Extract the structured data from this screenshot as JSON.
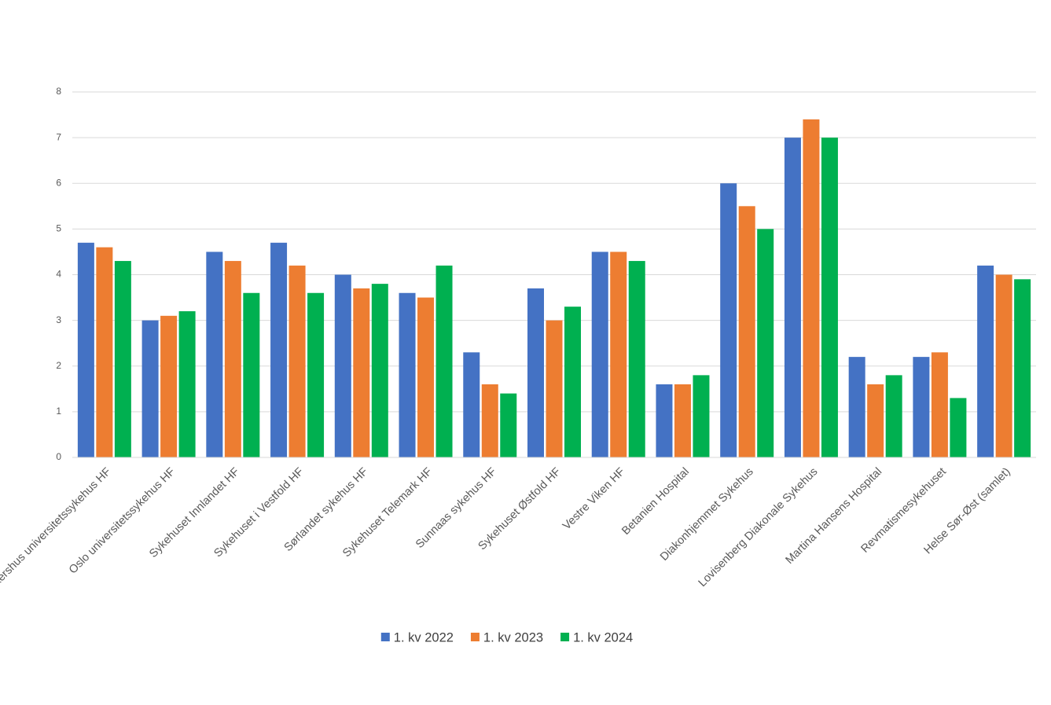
{
  "chart_data": {
    "type": "bar",
    "categories": [
      "Akershus universitetssykehus HF",
      "Oslo universitetssykehus HF",
      "Sykehuset Innlandet HF",
      "Sykehuset i Vestfold HF",
      "Sørlandet sykehus HF",
      "Sykehuset Telemark HF",
      "Sunnaas sykehus HF",
      "Sykehuset Østfold HF",
      "Vestre Viken HF",
      "Betanien Hospital",
      "Diakonhjemmet Sykehus",
      "Lovisenberg Diakonale Sykehus",
      "Martina Hansens Hospital",
      "Revmatismesykehuset",
      "Helse Sør-Øst (samlet)"
    ],
    "series": [
      {
        "name": "1. kv 2022",
        "color": "#4472c4",
        "values": [
          4.7,
          3.0,
          4.5,
          4.7,
          4.0,
          3.6,
          2.3,
          3.7,
          4.5,
          1.6,
          6.0,
          7.0,
          2.2,
          2.2,
          4.2
        ]
      },
      {
        "name": "1. kv 2023",
        "color": "#ed7d31",
        "values": [
          4.6,
          3.1,
          4.3,
          4.2,
          3.7,
          3.5,
          1.6,
          3.0,
          4.5,
          1.6,
          5.5,
          7.4,
          1.6,
          2.3,
          4.0
        ]
      },
      {
        "name": "1. kv 2024",
        "color": "#00b050",
        "values": [
          4.3,
          3.2,
          3.6,
          3.6,
          3.8,
          4.2,
          1.4,
          3.3,
          4.3,
          1.8,
          5.0,
          7.0,
          1.8,
          1.3,
          3.9
        ]
      }
    ],
    "ylim": [
      0,
      8
    ],
    "yticks": [
      0,
      1,
      2,
      3,
      4,
      5,
      6,
      7,
      8
    ],
    "grid": true,
    "legend": "bottom"
  }
}
